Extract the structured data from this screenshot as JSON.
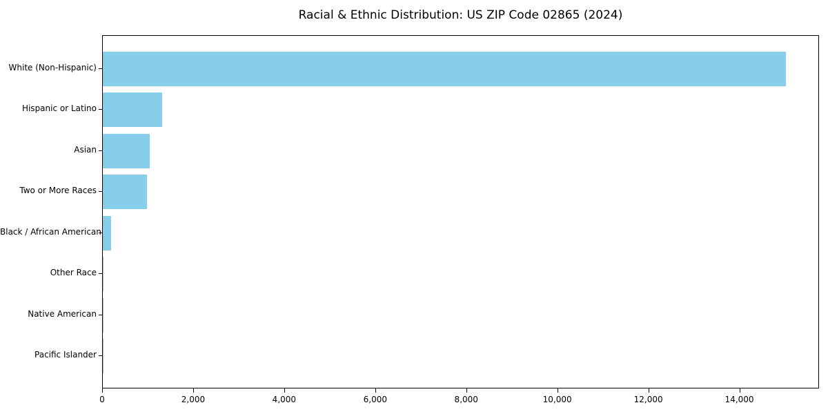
{
  "chart_data": {
    "type": "bar",
    "orientation": "horizontal",
    "title": "Racial & Ethnic Distribution: US ZIP Code 02865 (2024)",
    "categories": [
      "White (Non-Hispanic)",
      "Hispanic or Latino",
      "Asian",
      "Two or More Races",
      "Black / African American",
      "Other Race",
      "Native American",
      "Pacific Islander"
    ],
    "values": [
      15000,
      1300,
      1025,
      970,
      180,
      20,
      10,
      5
    ],
    "xlabel": "",
    "ylabel": "",
    "xlim": [
      0,
      15750
    ],
    "x_ticks": [
      0,
      2000,
      4000,
      6000,
      8000,
      10000,
      12000,
      14000
    ],
    "x_tick_labels": [
      "0",
      "2,000",
      "4,000",
      "6,000",
      "8,000",
      "10,000",
      "12,000",
      "14,000"
    ],
    "bar_color": "#87CEEB",
    "background_color": "#ffffff",
    "axis_color": "#000000",
    "grid": false,
    "legend": null
  }
}
